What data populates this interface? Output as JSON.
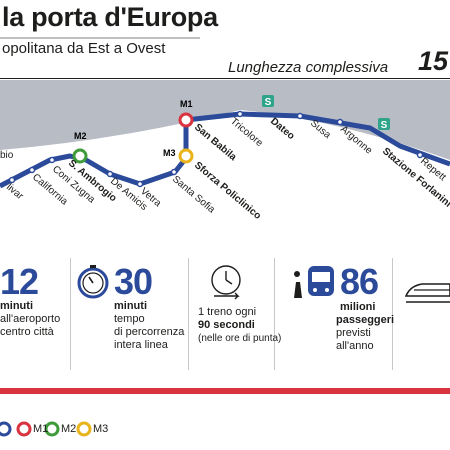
{
  "header": {
    "title": "la porta d'Europa",
    "subtitle": "opolitana da Est a Ovest",
    "length_label": "Lunghezza complessiva",
    "length_value": "15"
  },
  "stations": [
    "bio",
    "livar",
    "California",
    "Coni Zugna",
    "S. Ambrogio",
    "De Amicis",
    "Vetra",
    "Santa Sofia",
    "Sforza Policlinico",
    "San Babila",
    "Tricolore",
    "Dateo",
    "Susa",
    "Argonne",
    "Stazione Forlanini",
    "Repett"
  ],
  "interchange_labels": {
    "m1": "M1",
    "m2": "M2",
    "m3": "M3"
  },
  "stats": [
    {
      "num": "12",
      "lines": [
        "minuti",
        "all'aeroporto",
        "centro città"
      ]
    },
    {
      "num": "30",
      "lines": [
        "minuti",
        "tempo",
        "di percorrenza",
        "intera linea"
      ]
    },
    {
      "num": "",
      "lines": [
        "1 treno ogni",
        "90 secondi",
        "(nelle ore di punta)"
      ]
    },
    {
      "num": "86",
      "lines": [
        "milioni",
        "passeggeri",
        "previsti",
        "all'anno"
      ]
    }
  ],
  "legend": {
    "m1": "M1",
    "m2": "M2",
    "m3": "M3"
  },
  "colors": {
    "line": "#2b4a9a",
    "m1": "#d9333f",
    "m2": "#3e9b3a",
    "m3": "#e9b41b",
    "s": "#2ea58a"
  }
}
